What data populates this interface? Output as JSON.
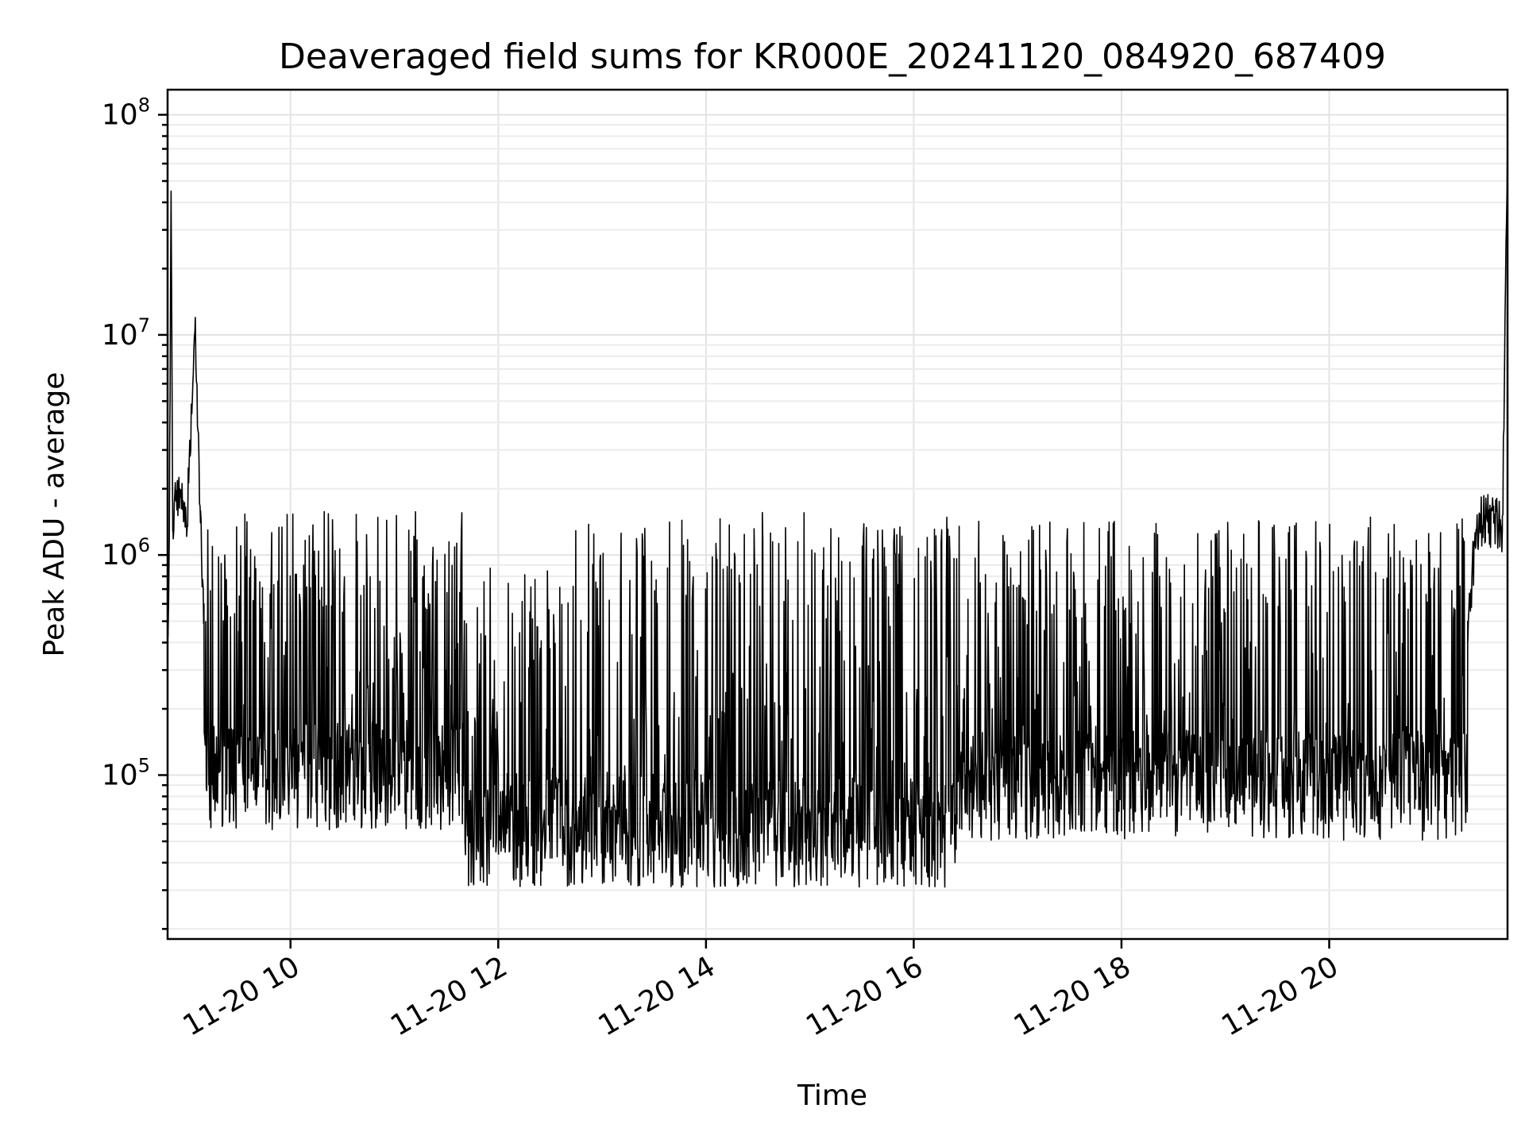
{
  "chart_data": {
    "type": "line",
    "title": "Deaveraged field sums for KR000E_20241120_084920_687409",
    "xlabel": "Time",
    "ylabel": "Peak ADU - average",
    "yscale": "log",
    "ylim": [
      18000,
      130000000
    ],
    "xlim": [
      "2024-11-20 08:49",
      "2024-11-20 21:43"
    ],
    "x_ticks": [
      "11-20 10",
      "11-20 12",
      "11-20 14",
      "11-20 16",
      "11-20 18",
      "11-20 20"
    ],
    "y_ticks": [
      {
        "base": "10",
        "exp": "5",
        "value": 100000
      },
      {
        "base": "10",
        "exp": "6",
        "value": 1000000
      },
      {
        "base": "10",
        "exp": "7",
        "value": 10000000
      },
      {
        "base": "10",
        "exp": "8",
        "value": 100000000
      }
    ],
    "grid": true,
    "series": [
      {
        "color": "#000000",
        "x": [
          "2024-11-20 08:49",
          "2024-11-20 08:50",
          "2024-11-20 08:51",
          "2024-11-20 08:52",
          "2024-11-20 08:54",
          "2024-11-20 08:56",
          "2024-11-20 09:00",
          "2024-11-20 09:05",
          "2024-11-20 09:08",
          "2024-11-20 09:10",
          "2024-11-20 09:15",
          "2024-11-20 09:20",
          "2024-11-20 09:30",
          "2024-11-20 09:45",
          "2024-11-20 10:00",
          "2024-11-20 10:30",
          "2024-11-20 11:00",
          "2024-11-20 11:30",
          "2024-11-20 11:45",
          "2024-11-20 12:00",
          "2024-11-20 12:15",
          "2024-11-20 12:30",
          "2024-11-20 13:00",
          "2024-11-20 13:30",
          "2024-11-20 14:00",
          "2024-11-20 14:30",
          "2024-11-20 15:00",
          "2024-11-20 15:30",
          "2024-11-20 16:00",
          "2024-11-20 16:25",
          "2024-11-20 16:30",
          "2024-11-20 17:00",
          "2024-11-20 17:30",
          "2024-11-20 18:00",
          "2024-11-20 18:30",
          "2024-11-20 19:00",
          "2024-11-20 19:30",
          "2024-11-20 20:00",
          "2024-11-20 20:30",
          "2024-11-20 21:00",
          "2024-11-20 21:15",
          "2024-11-20 21:20",
          "2024-11-20 21:25",
          "2024-11-20 21:30",
          "2024-11-20 21:35",
          "2024-11-20 21:40",
          "2024-11-20 21:43"
        ],
        "y": [
          400000,
          1200000,
          45000000,
          1500000,
          1800000,
          2000000,
          1300000,
          12000000,
          1400000,
          600000,
          500000,
          800000,
          450000,
          400000,
          500000,
          550000,
          400000,
          300000,
          150000,
          110000,
          50000,
          42000,
          55000,
          60000,
          62000,
          65000,
          68000,
          65000,
          60000,
          60000,
          100000,
          95000,
          90000,
          95000,
          100000,
          95000,
          100000,
          105000,
          95000,
          100000,
          110000,
          500000,
          1300000,
          1500000,
          1400000,
          1300000,
          85000000
        ]
      }
    ],
    "bursts": {
      "note_free": true,
      "segments": [
        {
          "start": "2024-11-20 09:10",
          "end": "2024-11-20 11:40",
          "base": 100000,
          "peak": 1600000
        },
        {
          "start": "2024-11-20 11:40",
          "end": "2024-11-20 12:40",
          "base": 55000,
          "peak": 900000
        },
        {
          "start": "2024-11-20 12:40",
          "end": "2024-11-20 16:25",
          "base": 55000,
          "peak": 1600000
        },
        {
          "start": "2024-11-20 16:25",
          "end": "2024-11-20 21:20",
          "base": 90000,
          "peak": 1500000
        }
      ]
    }
  }
}
